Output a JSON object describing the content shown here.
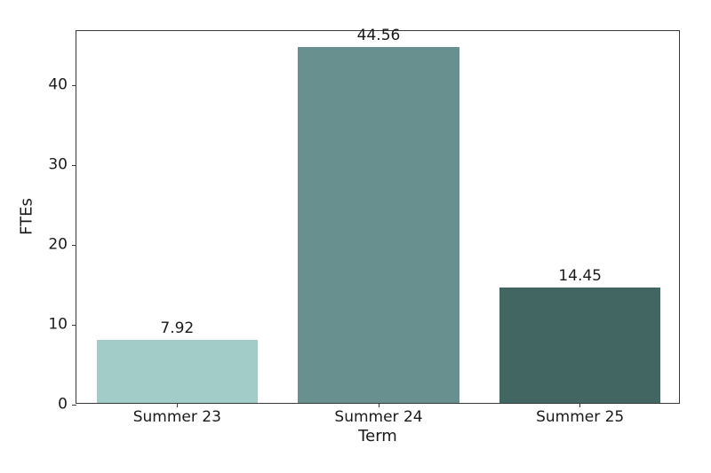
{
  "chart_data": {
    "type": "bar",
    "title": "",
    "xlabel": "Term",
    "ylabel": "FTEs",
    "categories": [
      "Summer 23",
      "Summer 24",
      "Summer 25"
    ],
    "values": [
      7.92,
      44.56,
      14.45
    ],
    "value_labels": [
      "7.92",
      "44.56",
      "14.45"
    ],
    "bar_colors": [
      "#a2ccc8",
      "#67908e",
      "#426661"
    ],
    "ylim": [
      0,
      46.79
    ],
    "yticks": [
      0,
      10,
      20,
      30,
      40
    ],
    "ytick_labels": [
      "0",
      "10",
      "20",
      "30",
      "40"
    ],
    "grid": false,
    "legend": null,
    "background_color": "#ffffff",
    "spine_color": "#3a3a3a",
    "text_color": "#1a1a1a",
    "bar_width_fraction": 0.8
  }
}
